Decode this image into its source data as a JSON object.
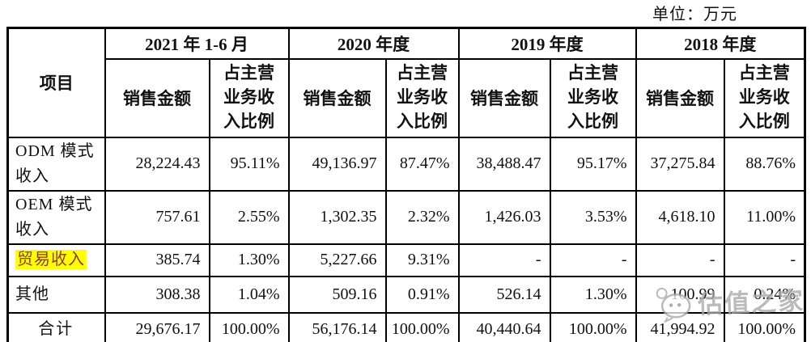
{
  "unit_label": "单位：万元",
  "table": {
    "item_header": "项目",
    "periods": [
      "2021 年 1-6 月",
      "2020 年度",
      "2019 年度",
      "2018 年度"
    ],
    "subheader_sales": "销售金额",
    "subheader_ratio": "占主营业务收入比例",
    "rows": [
      {
        "label": "ODM 模式\n收入",
        "highlight": false,
        "is_total": false,
        "values": [
          "28,224.43",
          "95.11%",
          "49,136.97",
          "87.47%",
          "38,488.47",
          "95.17%",
          "37,275.84",
          "88.76%"
        ]
      },
      {
        "label": "OEM 模式\n收入",
        "highlight": false,
        "is_total": false,
        "values": [
          "757.61",
          "2.55%",
          "1,302.35",
          "2.32%",
          "1,426.03",
          "3.53%",
          "4,618.10",
          "11.00%"
        ]
      },
      {
        "label": "贸易收入",
        "highlight": true,
        "is_total": false,
        "values": [
          "385.74",
          "1.30%",
          "5,227.66",
          "9.31%",
          "-",
          "-",
          "-",
          "-"
        ]
      },
      {
        "label": "其他",
        "highlight": false,
        "is_total": false,
        "values": [
          "308.38",
          "1.04%",
          "509.16",
          "0.91%",
          "526.14",
          "1.30%",
          "100.99",
          "0.24%"
        ]
      },
      {
        "label": "合计",
        "highlight": false,
        "is_total": true,
        "values": [
          "29,676.17",
          "100.00%",
          "56,176.14",
          "100.00%",
          "40,440.64",
          "100.00%",
          "41,994.92",
          "100.00%"
        ]
      }
    ]
  },
  "watermark": {
    "text": "估值之家",
    "icon": "chat-bubble-face-icon"
  },
  "colors": {
    "highlight_bg": "#ffff00",
    "highlight_text": "#8a3a30",
    "watermark": "#a9a9a9",
    "border": "#000000",
    "text": "#111111"
  }
}
